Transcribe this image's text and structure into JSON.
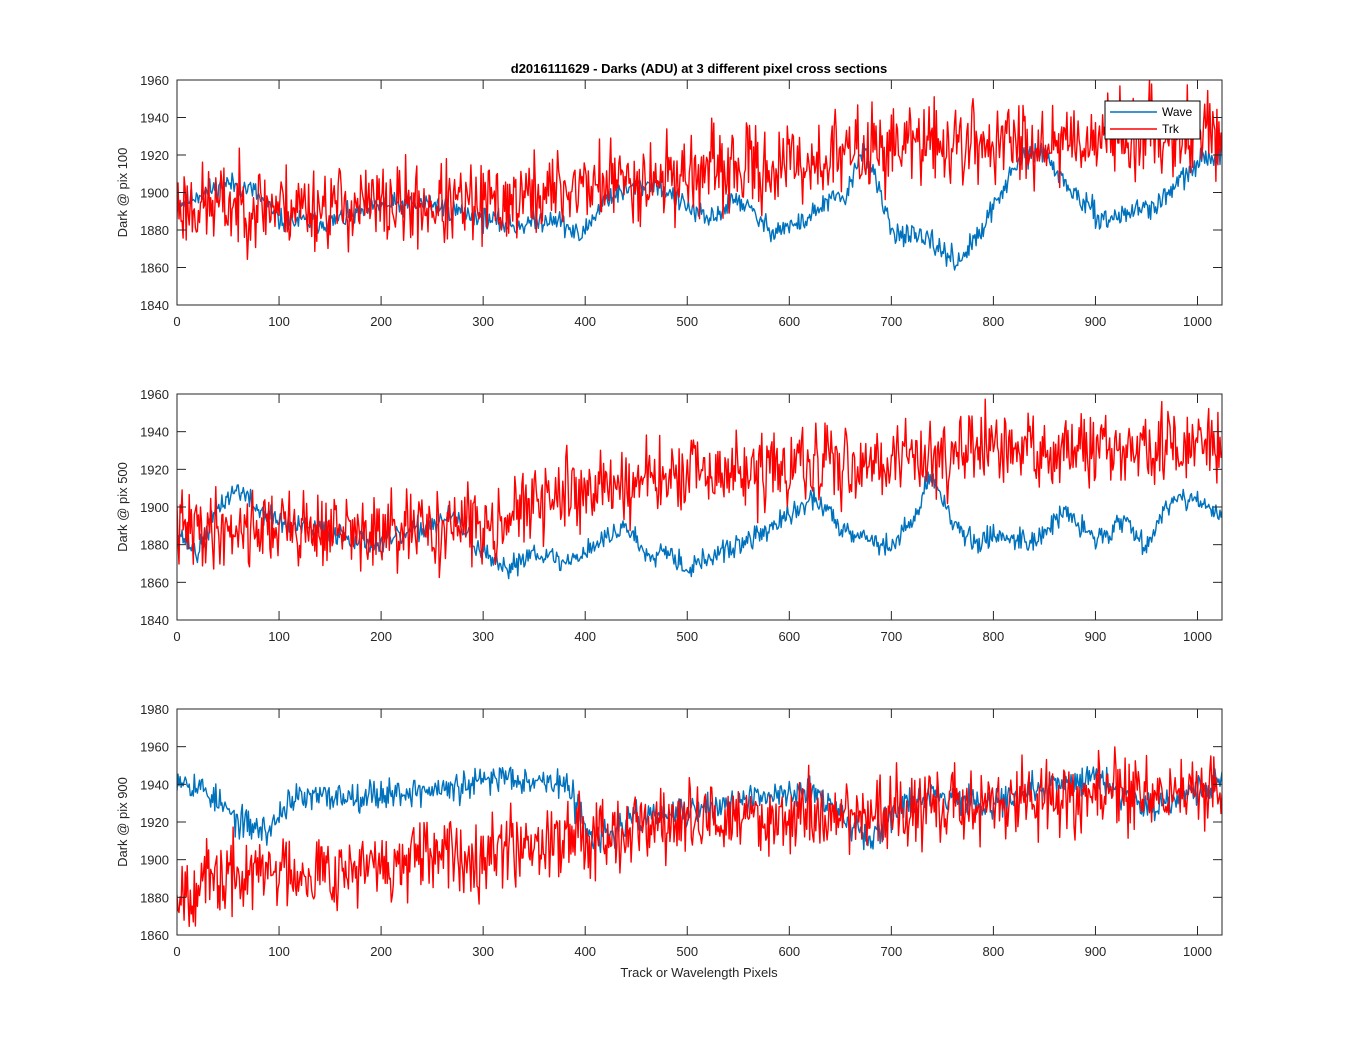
{
  "figure": {
    "title": "d2016111629 - Darks (ADU) at 3 different pixel cross sections",
    "xlabel": "Track or Wavelength Pixels"
  },
  "colors": {
    "Wave": "#0072BD",
    "Trk": "#FF0000",
    "axis": "#262626"
  },
  "chart_data": [
    {
      "type": "line",
      "title": "d2016111629 - Darks (ADU) at 3 different pixel cross sections",
      "xlabel": "",
      "ylabel": "Dark @ pix 100",
      "xlim": [
        0,
        1024
      ],
      "ylim": [
        1840,
        1960
      ],
      "xticks": [
        0,
        100,
        200,
        300,
        400,
        500,
        600,
        700,
        800,
        900,
        1000
      ],
      "yticks": [
        1840,
        1860,
        1880,
        1900,
        1920,
        1940,
        1960
      ],
      "grid": false,
      "legend": {
        "placement": "top-right",
        "entries": [
          "Wave",
          "Trk"
        ]
      },
      "series": [
        {
          "name": "Wave",
          "trend": [
            [
              0,
              1893
            ],
            [
              20,
              1899
            ],
            [
              50,
              1905
            ],
            [
              75,
              1901
            ],
            [
              100,
              1885
            ],
            [
              150,
              1884
            ],
            [
              200,
              1893
            ],
            [
              250,
              1894
            ],
            [
              300,
              1886
            ],
            [
              330,
              1882
            ],
            [
              370,
              1887
            ],
            [
              395,
              1876
            ],
            [
              420,
              1897
            ],
            [
              450,
              1903
            ],
            [
              470,
              1905
            ],
            [
              490,
              1896
            ],
            [
              520,
              1885
            ],
            [
              550,
              1897
            ],
            [
              580,
              1880
            ],
            [
              610,
              1883
            ],
            [
              640,
              1896
            ],
            [
              655,
              1897
            ],
            [
              665,
              1912
            ],
            [
              672,
              1926
            ],
            [
              690,
              1897
            ],
            [
              700,
              1880
            ],
            [
              740,
              1873
            ],
            [
              765,
              1863
            ],
            [
              790,
              1880
            ],
            [
              805,
              1898
            ],
            [
              830,
              1920
            ],
            [
              850,
              1921
            ],
            [
              870,
              1905
            ],
            [
              890,
              1893
            ],
            [
              910,
              1885
            ],
            [
              940,
              1891
            ],
            [
              960,
              1893
            ],
            [
              990,
              1910
            ],
            [
              1010,
              1919
            ],
            [
              1024,
              1921
            ]
          ],
          "noise": 3,
          "seed": 11
        },
        {
          "name": "Trk",
          "trend": [
            [
              0,
              1893
            ],
            [
              100,
              1893
            ],
            [
              200,
              1893
            ],
            [
              300,
              1893
            ],
            [
              400,
              1904
            ],
            [
              500,
              1910
            ],
            [
              600,
              1914
            ],
            [
              700,
              1926
            ],
            [
              800,
              1926
            ],
            [
              900,
              1930
            ],
            [
              1000,
              1933
            ],
            [
              1024,
              1932
            ]
          ],
          "noise": 11,
          "seed": 23
        }
      ]
    },
    {
      "type": "line",
      "xlabel": "",
      "ylabel": "Dark @ pix 500",
      "xlim": [
        0,
        1024
      ],
      "ylim": [
        1840,
        1960
      ],
      "xticks": [
        0,
        100,
        200,
        300,
        400,
        500,
        600,
        700,
        800,
        900,
        1000
      ],
      "yticks": [
        1840,
        1860,
        1880,
        1900,
        1920,
        1940,
        1960
      ],
      "grid": false,
      "series": [
        {
          "name": "Wave",
          "trend": [
            [
              0,
              1888
            ],
            [
              20,
              1875
            ],
            [
              40,
              1900
            ],
            [
              60,
              1910
            ],
            [
              80,
              1898
            ],
            [
              110,
              1890
            ],
            [
              150,
              1887
            ],
            [
              200,
              1880
            ],
            [
              250,
              1891
            ],
            [
              270,
              1895
            ],
            [
              300,
              1875
            ],
            [
              320,
              1866
            ],
            [
              350,
              1877
            ],
            [
              380,
              1870
            ],
            [
              410,
              1880
            ],
            [
              440,
              1890
            ],
            [
              460,
              1875
            ],
            [
              480,
              1878
            ],
            [
              500,
              1867
            ],
            [
              530,
              1875
            ],
            [
              560,
              1882
            ],
            [
              600,
              1895
            ],
            [
              625,
              1905
            ],
            [
              650,
              1890
            ],
            [
              680,
              1883
            ],
            [
              700,
              1878
            ],
            [
              720,
              1893
            ],
            [
              740,
              1917
            ],
            [
              760,
              1893
            ],
            [
              780,
              1880
            ],
            [
              800,
              1885
            ],
            [
              840,
              1882
            ],
            [
              870,
              1897
            ],
            [
              900,
              1883
            ],
            [
              930,
              1893
            ],
            [
              950,
              1880
            ],
            [
              975,
              1905
            ],
            [
              1000,
              1905
            ],
            [
              1024,
              1893
            ]
          ],
          "noise": 3,
          "seed": 37
        },
        {
          "name": "Trk",
          "trend": [
            [
              0,
              1888
            ],
            [
              100,
              1890
            ],
            [
              200,
              1885
            ],
            [
              300,
              1891
            ],
            [
              400,
              1910
            ],
            [
              500,
              1916
            ],
            [
              600,
              1920
            ],
            [
              700,
              1926
            ],
            [
              800,
              1930
            ],
            [
              900,
              1929
            ],
            [
              1000,
              1932
            ],
            [
              1024,
              1933
            ]
          ],
          "noise": 10,
          "seed": 41
        }
      ]
    },
    {
      "type": "line",
      "xlabel": "Track or Wavelength Pixels",
      "ylabel": "Dark @ pix 900",
      "xlim": [
        0,
        1024
      ],
      "ylim": [
        1860,
        1980
      ],
      "xticks": [
        0,
        100,
        200,
        300,
        400,
        500,
        600,
        700,
        800,
        900,
        1000
      ],
      "yticks": [
        1860,
        1880,
        1900,
        1920,
        1940,
        1960,
        1980
      ],
      "grid": false,
      "series": [
        {
          "name": "Wave",
          "trend": [
            [
              0,
              1945
            ],
            [
              30,
              1936
            ],
            [
              60,
              1920
            ],
            [
              90,
              1915
            ],
            [
              110,
              1932
            ],
            [
              200,
              1935
            ],
            [
              280,
              1938
            ],
            [
              320,
              1945
            ],
            [
              380,
              1940
            ],
            [
              410,
              1910
            ],
            [
              450,
              1922
            ],
            [
              500,
              1925
            ],
            [
              550,
              1930
            ],
            [
              620,
              1938
            ],
            [
              650,
              1923
            ],
            [
              680,
              1912
            ],
            [
              700,
              1925
            ],
            [
              740,
              1935
            ],
            [
              800,
              1930
            ],
            [
              850,
              1938
            ],
            [
              900,
              1945
            ],
            [
              950,
              1928
            ],
            [
              1000,
              1937
            ],
            [
              1024,
              1942
            ]
          ],
          "noise": 4,
          "seed": 53
        },
        {
          "name": "Trk",
          "trend": [
            [
              0,
              1885
            ],
            [
              100,
              1895
            ],
            [
              200,
              1895
            ],
            [
              300,
              1905
            ],
            [
              400,
              1915
            ],
            [
              500,
              1920
            ],
            [
              600,
              1923
            ],
            [
              700,
              1925
            ],
            [
              800,
              1930
            ],
            [
              900,
              1935
            ],
            [
              1000,
              1935
            ],
            [
              1024,
              1938
            ]
          ],
          "noise": 10,
          "seed": 67
        }
      ]
    }
  ]
}
